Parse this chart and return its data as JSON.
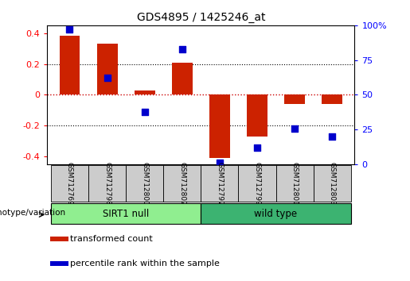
{
  "title": "GDS4895 / 1425246_at",
  "samples": [
    "GSM712769",
    "GSM712798",
    "GSM712800",
    "GSM712802",
    "GSM712797",
    "GSM712799",
    "GSM712801",
    "GSM712803"
  ],
  "transformed_count": [
    0.38,
    0.33,
    0.03,
    0.21,
    -0.41,
    -0.27,
    -0.06,
    -0.06
  ],
  "percentile_rank": [
    0.97,
    0.62,
    0.38,
    0.83,
    0.01,
    0.12,
    0.26,
    0.2
  ],
  "group0_label": "SIRT1 null",
  "group0_count": 4,
  "group0_color": "#90EE90",
  "group1_label": "wild type",
  "group1_count": 4,
  "group1_color": "#3CB371",
  "ylim_left": [
    -0.45,
    0.45
  ],
  "ylim_right": [
    0,
    1.0
  ],
  "yticks_left": [
    -0.4,
    -0.2,
    0.0,
    0.2,
    0.4
  ],
  "ytick_labels_left": [
    "-0.4",
    "-0.2",
    "0",
    "0.2",
    "0.4"
  ],
  "yticks_right": [
    0.0,
    0.25,
    0.5,
    0.75,
    1.0
  ],
  "ytick_labels_right": [
    "0",
    "25",
    "50",
    "75",
    "100%"
  ],
  "bar_color": "#CC2200",
  "dot_color": "#0000CC",
  "zero_line_color": "#CC0000",
  "grid_color": "black",
  "bg_color": "white",
  "sample_box_color": "#CCCCCC",
  "bar_width": 0.55,
  "dot_size": 40,
  "xlabel_group": "genotype/variation",
  "legend_items": [
    "transformed count",
    "percentile rank within the sample"
  ],
  "legend_colors": [
    "#CC2200",
    "#0000CC"
  ]
}
